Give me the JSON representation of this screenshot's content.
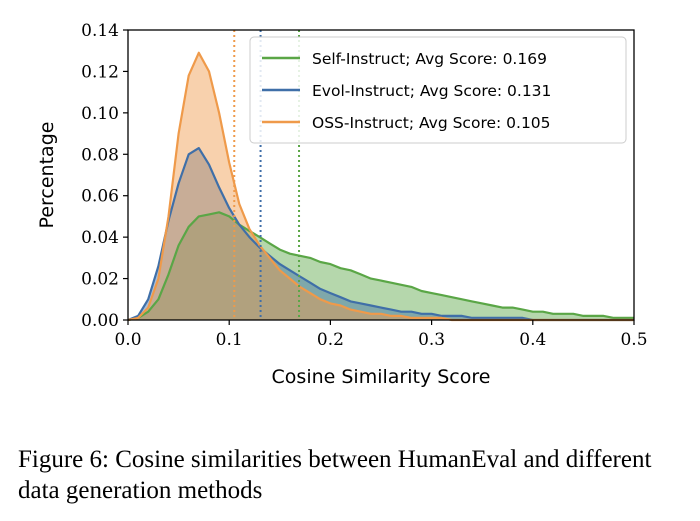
{
  "chart_data": {
    "type": "area",
    "title": "",
    "xlabel": "Cosine Similarity Score",
    "ylabel": "Percentage",
    "xlim": [
      0.0,
      0.5
    ],
    "ylim": [
      0.0,
      0.14
    ],
    "x_ticks": [
      "0.0",
      "0.1",
      "0.2",
      "0.3",
      "0.4",
      "0.5"
    ],
    "y_ticks": [
      "0.00",
      "0.02",
      "0.04",
      "0.06",
      "0.08",
      "0.10",
      "0.12",
      "0.14"
    ],
    "legend_position": "top-right",
    "grid": false,
    "series": [
      {
        "name": "Self-Instruct; Avg Score: 0.169",
        "color": "#5aa646",
        "avg": 0.169,
        "x": [
          0.0,
          0.01,
          0.02,
          0.03,
          0.04,
          0.05,
          0.06,
          0.07,
          0.08,
          0.09,
          0.1,
          0.11,
          0.12,
          0.13,
          0.14,
          0.15,
          0.16,
          0.17,
          0.18,
          0.19,
          0.2,
          0.21,
          0.22,
          0.23,
          0.24,
          0.25,
          0.26,
          0.27,
          0.28,
          0.29,
          0.3,
          0.31,
          0.32,
          0.33,
          0.34,
          0.35,
          0.36,
          0.37,
          0.38,
          0.39,
          0.4,
          0.41,
          0.42,
          0.43,
          0.44,
          0.45,
          0.46,
          0.47,
          0.48,
          0.49,
          0.5
        ],
        "y": [
          0.0,
          0.001,
          0.004,
          0.01,
          0.022,
          0.036,
          0.045,
          0.05,
          0.051,
          0.052,
          0.05,
          0.046,
          0.043,
          0.04,
          0.037,
          0.034,
          0.032,
          0.031,
          0.03,
          0.028,
          0.027,
          0.025,
          0.024,
          0.022,
          0.02,
          0.019,
          0.018,
          0.017,
          0.016,
          0.014,
          0.013,
          0.012,
          0.011,
          0.01,
          0.009,
          0.008,
          0.007,
          0.006,
          0.006,
          0.005,
          0.004,
          0.004,
          0.003,
          0.003,
          0.003,
          0.002,
          0.002,
          0.002,
          0.001,
          0.001,
          0.001
        ]
      },
      {
        "name": "Evol-Instruct; Avg Score: 0.131",
        "color": "#3f6fa8",
        "avg": 0.131,
        "x": [
          0.0,
          0.01,
          0.02,
          0.03,
          0.04,
          0.05,
          0.06,
          0.07,
          0.08,
          0.09,
          0.1,
          0.11,
          0.12,
          0.13,
          0.14,
          0.15,
          0.16,
          0.17,
          0.18,
          0.19,
          0.2,
          0.21,
          0.22,
          0.23,
          0.24,
          0.25,
          0.26,
          0.27,
          0.28,
          0.29,
          0.3,
          0.31,
          0.32,
          0.33,
          0.34,
          0.35,
          0.36,
          0.37,
          0.38,
          0.39,
          0.4,
          0.41,
          0.42,
          0.43,
          0.44,
          0.45,
          0.46,
          0.47,
          0.48,
          0.49,
          0.5
        ],
        "y": [
          0.0,
          0.002,
          0.01,
          0.026,
          0.048,
          0.066,
          0.08,
          0.083,
          0.075,
          0.064,
          0.054,
          0.046,
          0.04,
          0.035,
          0.031,
          0.027,
          0.024,
          0.021,
          0.018,
          0.015,
          0.013,
          0.011,
          0.009,
          0.008,
          0.007,
          0.006,
          0.005,
          0.004,
          0.004,
          0.003,
          0.003,
          0.002,
          0.002,
          0.002,
          0.001,
          0.001,
          0.001,
          0.001,
          0.001,
          0.001,
          0.0,
          0.0,
          0.0,
          0.0,
          0.0,
          0.0,
          0.0,
          0.0,
          0.0,
          0.0,
          0.0
        ]
      },
      {
        "name": "OSS-Instruct; Avg Score: 0.105",
        "color": "#ef9a4a",
        "avg": 0.105,
        "x": [
          0.0,
          0.01,
          0.02,
          0.03,
          0.04,
          0.05,
          0.06,
          0.07,
          0.08,
          0.09,
          0.1,
          0.11,
          0.12,
          0.13,
          0.14,
          0.15,
          0.16,
          0.17,
          0.18,
          0.19,
          0.2,
          0.21,
          0.22,
          0.23,
          0.24,
          0.25,
          0.26,
          0.27,
          0.28,
          0.29,
          0.3,
          0.31,
          0.32,
          0.33,
          0.34,
          0.35,
          0.36,
          0.37,
          0.38,
          0.39,
          0.4,
          0.41,
          0.42,
          0.43,
          0.44,
          0.45,
          0.46,
          0.47,
          0.48,
          0.49,
          0.5
        ],
        "y": [
          0.0,
          0.001,
          0.006,
          0.02,
          0.05,
          0.09,
          0.118,
          0.129,
          0.12,
          0.1,
          0.076,
          0.056,
          0.044,
          0.036,
          0.03,
          0.024,
          0.02,
          0.016,
          0.013,
          0.01,
          0.008,
          0.007,
          0.005,
          0.004,
          0.003,
          0.003,
          0.002,
          0.002,
          0.001,
          0.001,
          0.001,
          0.001,
          0.0,
          0.0,
          0.0,
          0.0,
          0.0,
          0.0,
          0.0,
          0.0,
          0.0,
          0.0,
          0.0,
          0.0,
          0.0,
          0.0,
          0.0,
          0.0,
          0.0,
          0.0,
          0.0
        ]
      }
    ]
  },
  "caption": "Figure 6: Cosine similarities between HumanEval and different data generation methods"
}
